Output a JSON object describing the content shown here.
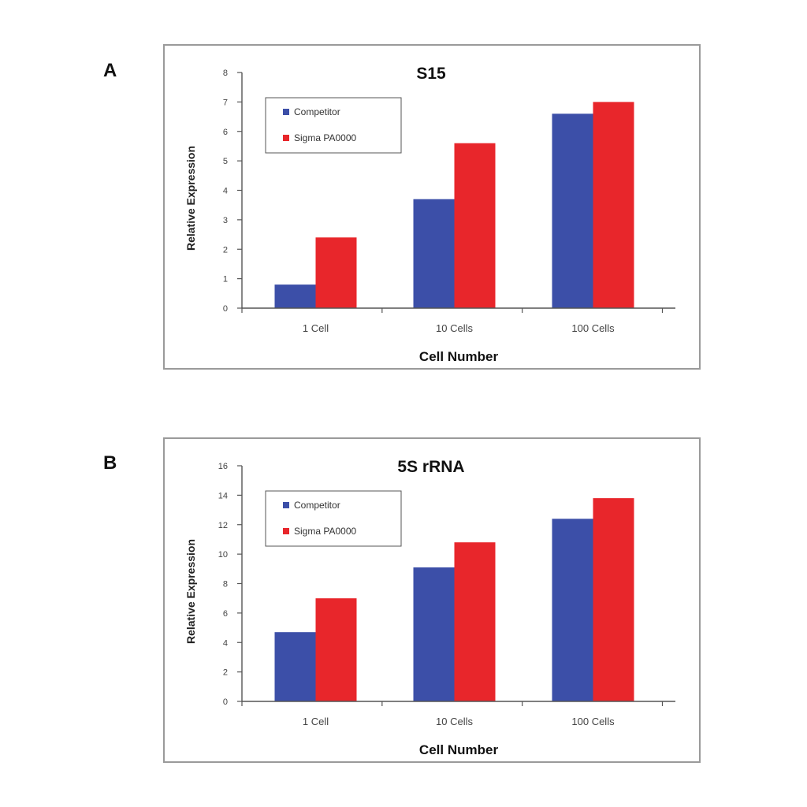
{
  "panels": [
    {
      "letter": "A"
    },
    {
      "letter": "B"
    }
  ],
  "chart_data": [
    {
      "type": "bar",
      "title": "S15",
      "xlabel": "Cell Number",
      "ylabel": "Relative Expression",
      "ylim": [
        0,
        8
      ],
      "yticks": [
        0,
        1,
        2,
        3,
        4,
        5,
        6,
        7,
        8
      ],
      "categories": [
        "1 Cell",
        "10 Cells",
        "100 Cells"
      ],
      "series": [
        {
          "name": "Competitor",
          "color": "#3c4fa8",
          "values": [
            0.8,
            3.7,
            6.6
          ]
        },
        {
          "name": "Sigma PA0000",
          "color": "#e8262b",
          "values": [
            2.4,
            5.6,
            7.0
          ]
        }
      ],
      "legend": "top-left",
      "grid": false
    },
    {
      "type": "bar",
      "title": "5S rRNA",
      "xlabel": "Cell Number",
      "ylabel": "Relative Expression",
      "ylim": [
        0,
        16
      ],
      "yticks": [
        0,
        2,
        4,
        6,
        8,
        10,
        12,
        14,
        16
      ],
      "categories": [
        "1 Cell",
        "10 Cells",
        "100 Cells"
      ],
      "series": [
        {
          "name": "Competitor",
          "color": "#3c4fa8",
          "values": [
            4.7,
            9.1,
            12.4
          ]
        },
        {
          "name": "Sigma PA0000",
          "color": "#e8262b",
          "values": [
            7.0,
            10.8,
            13.8
          ]
        }
      ],
      "legend": "top-left",
      "grid": false
    }
  ]
}
